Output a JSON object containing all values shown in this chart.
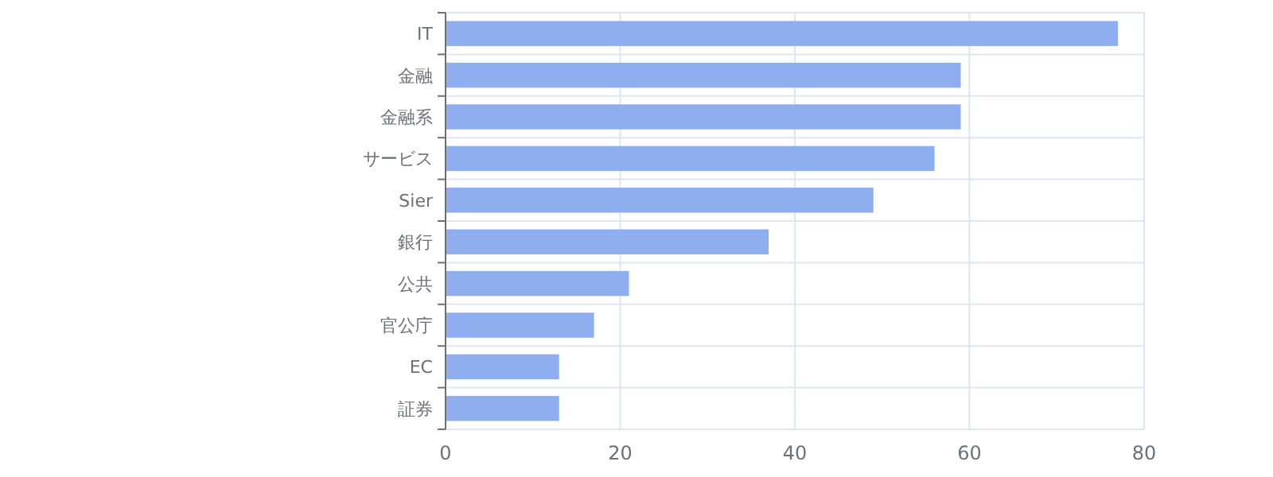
{
  "chart_data": {
    "type": "bar",
    "orientation": "horizontal",
    "categories": [
      "IT",
      "金融",
      "金融系",
      "サービス",
      "Sier",
      "銀行",
      "公共",
      "官公庁",
      "EC",
      "証券"
    ],
    "values": [
      77,
      59,
      59,
      56,
      49,
      37,
      21,
      17,
      13,
      13
    ],
    "color": "#8eaef0",
    "xlim": [
      0,
      80
    ],
    "xticks": [
      0,
      20,
      40,
      60,
      80
    ],
    "grid": true
  }
}
